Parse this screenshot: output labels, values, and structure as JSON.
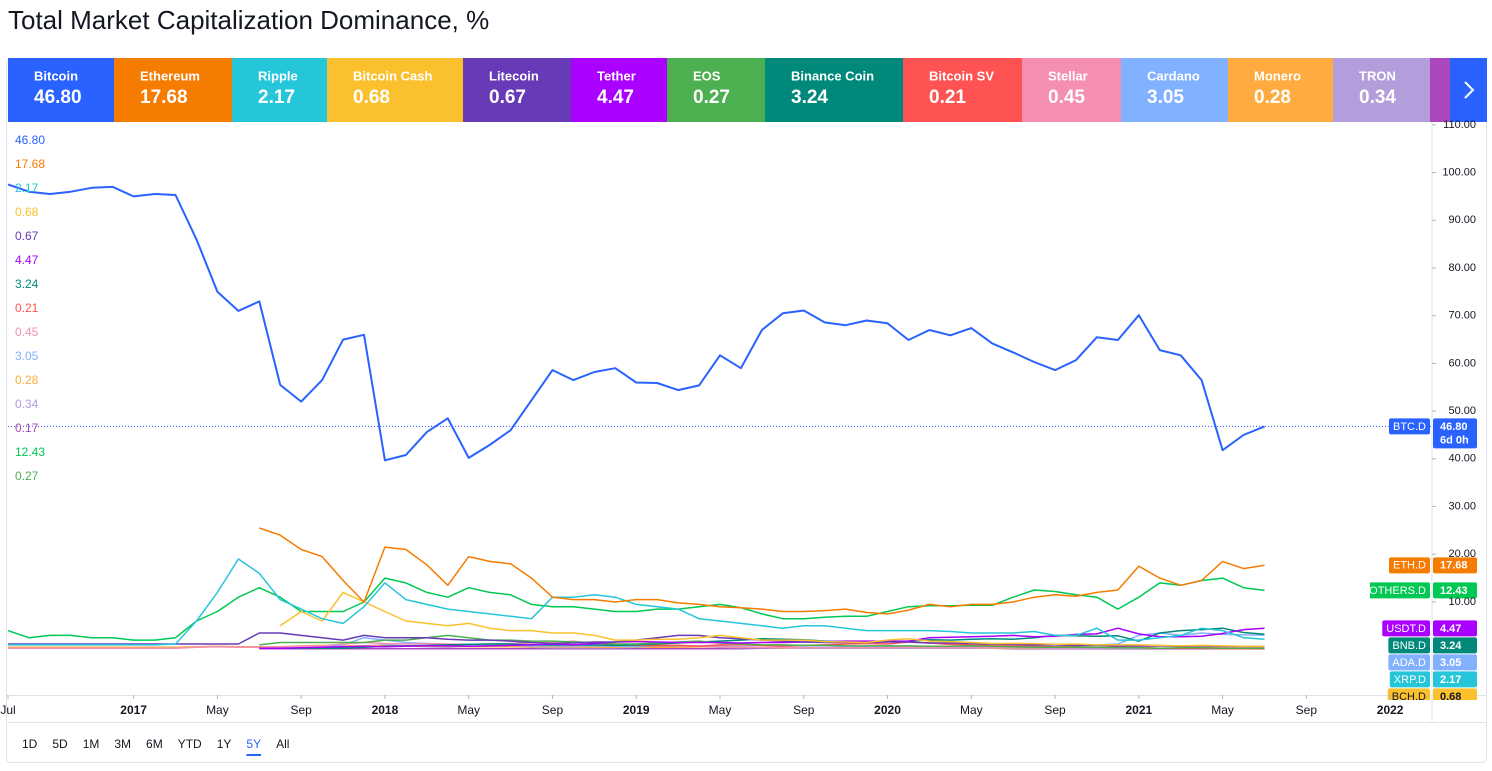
{
  "chart_data": {
    "type": "line",
    "title": "Total Market Capitalization Dominance, %",
    "x": [
      "2016-07",
      "2016-08",
      "2016-09",
      "2016-10",
      "2016-11",
      "2016-12",
      "2017-01",
      "2017-02",
      "2017-03",
      "2017-04",
      "2017-05",
      "2017-06",
      "2017-07",
      "2017-08",
      "2017-09",
      "2017-10",
      "2017-11",
      "2017-12",
      "2018-01",
      "2018-02",
      "2018-03",
      "2018-04",
      "2018-05",
      "2018-06",
      "2018-07",
      "2018-08",
      "2018-09",
      "2018-10",
      "2018-11",
      "2018-12",
      "2019-01",
      "2019-02",
      "2019-03",
      "2019-04",
      "2019-05",
      "2019-06",
      "2019-07",
      "2019-08",
      "2019-09",
      "2019-10",
      "2019-11",
      "2019-12",
      "2020-01",
      "2020-02",
      "2020-03",
      "2020-04",
      "2020-05",
      "2020-06",
      "2020-07",
      "2020-08",
      "2020-09",
      "2020-10",
      "2020-11",
      "2020-12",
      "2021-01",
      "2021-02",
      "2021-03",
      "2021-04",
      "2021-05",
      "2021-06",
      "2021-07"
    ],
    "xlim": [
      "2016-07",
      "2022-03"
    ],
    "xticks": [
      {
        "value": "2016-07",
        "label": "Jul"
      },
      {
        "value": "2017-01",
        "label": "2017"
      },
      {
        "value": "2017-05",
        "label": "May"
      },
      {
        "value": "2017-09",
        "label": "Sep"
      },
      {
        "value": "2018-01",
        "label": "2018"
      },
      {
        "value": "2018-05",
        "label": "May"
      },
      {
        "value": "2018-09",
        "label": "Sep"
      },
      {
        "value": "2019-01",
        "label": "2019"
      },
      {
        "value": "2019-05",
        "label": "May"
      },
      {
        "value": "2019-09",
        "label": "Sep"
      },
      {
        "value": "2020-01",
        "label": "2020"
      },
      {
        "value": "2020-05",
        "label": "May"
      },
      {
        "value": "2020-09",
        "label": "Sep"
      },
      {
        "value": "2021-01",
        "label": "2021"
      },
      {
        "value": "2021-05",
        "label": "May"
      },
      {
        "value": "2021-09",
        "label": "Sep"
      },
      {
        "value": "2022-01",
        "label": "2022"
      }
    ],
    "ylim": [
      -9.5,
      110.6
    ],
    "yticks": [
      {
        "value": 10,
        "label": "10.00"
      },
      {
        "value": 20,
        "label": "20.00"
      },
      {
        "value": 30,
        "label": "30.00"
      },
      {
        "value": 40,
        "label": "40.00"
      },
      {
        "value": 50,
        "label": "50.00"
      },
      {
        "value": 60,
        "label": "60.00"
      },
      {
        "value": 70,
        "label": "70.00"
      },
      {
        "value": 80,
        "label": "80.00"
      },
      {
        "value": 90,
        "label": "90.00"
      },
      {
        "value": 100,
        "label": "100.00"
      },
      {
        "value": 110,
        "label": "110.00"
      }
    ],
    "grid": false,
    "series": [
      {
        "name": "Bitcoin",
        "ticker": "BTC.D",
        "countdown": "6d 0h",
        "color": "#2962ff",
        "last_label": "46.80",
        "values": [
          97.5,
          96,
          95.5,
          96,
          96.8,
          97,
          95,
          95.5,
          95.3,
          86,
          75,
          71,
          73,
          55.5,
          52,
          56.5,
          65,
          66,
          39.7,
          40.8,
          45.6,
          48.5,
          40.2,
          42.9,
          46,
          52.3,
          58.6,
          56.5,
          58.2,
          59,
          56,
          55.9,
          54.4,
          55.4,
          61.7,
          59,
          67,
          70.5,
          71.1,
          68.6,
          68,
          69,
          68.4,
          64.9,
          67,
          65.9,
          67.4,
          64.2,
          62.3,
          60.3,
          58.6,
          60.7,
          65.5,
          64.9,
          70.1,
          62.8,
          61.7,
          56.5,
          41.8,
          45,
          46.8
        ]
      },
      {
        "name": "Ethereum",
        "ticker": "ETH.D",
        "color": "#f57c00",
        "last_label": "17.68",
        "values": [
          null,
          null,
          null,
          null,
          null,
          null,
          null,
          null,
          null,
          null,
          null,
          null,
          25.5,
          24,
          21,
          19.5,
          14.5,
          10,
          21.5,
          21,
          17.8,
          13.5,
          19.5,
          18.5,
          18,
          15,
          11,
          10.5,
          10.5,
          10,
          10.5,
          10.5,
          9.8,
          9.5,
          9,
          8.8,
          8.5,
          8,
          8,
          8.2,
          8.5,
          7.8,
          7.5,
          8.3,
          9.5,
          9,
          9.5,
          9.5,
          10,
          11,
          11.5,
          11.2,
          12,
          12.5,
          17.5,
          15,
          13.5,
          14.5,
          18.5,
          17,
          17.68
        ]
      },
      {
        "name": "Ripple",
        "ticker": "XRP.D",
        "color": "#26c6da",
        "last_label": "2.17",
        "values": [
          1,
          1,
          1,
          1,
          1,
          1,
          1,
          1,
          1.2,
          6,
          12,
          19,
          16,
          10.5,
          8.5,
          6.5,
          5.5,
          9,
          14,
          10.5,
          9.5,
          8.5,
          8,
          7.5,
          7,
          6.5,
          11,
          11,
          11.5,
          11,
          9.5,
          9,
          8.5,
          6.5,
          6,
          5.5,
          5,
          4.5,
          5,
          5,
          4.5,
          4,
          4,
          4,
          4,
          3.8,
          3.5,
          3.5,
          3.5,
          3.8,
          3,
          3,
          4.5,
          2,
          2,
          2.5,
          3,
          4.5,
          4,
          2.5,
          2.17
        ]
      },
      {
        "name": "Bitcoin Cash",
        "ticker": "BCH.D",
        "color": "#fbc02d",
        "last_label": "0.68",
        "values": [
          null,
          null,
          null,
          null,
          null,
          null,
          null,
          null,
          null,
          null,
          null,
          null,
          null,
          5,
          8,
          6,
          12,
          10,
          8,
          6,
          5.5,
          5,
          5.5,
          4.5,
          4,
          4,
          3.5,
          3.5,
          3,
          2,
          2,
          2.2,
          2.2,
          2.5,
          3,
          2.5,
          2,
          2,
          2,
          1.7,
          1.6,
          1.5,
          2,
          2.3,
          1.8,
          1.7,
          1.5,
          1.3,
          1.3,
          1.3,
          1.1,
          1.2,
          1,
          1,
          1,
          0.9,
          0.8,
          0.9,
          0.8,
          0.7,
          0.68
        ]
      },
      {
        "name": "Litecoin",
        "color": "#673ab7",
        "last_label": "0.67",
        "values": [
          1.2,
          1.2,
          1.2,
          1.2,
          1.2,
          1.2,
          1.2,
          1.2,
          1.2,
          1.2,
          1.2,
          1.2,
          3.5,
          3.5,
          3,
          2.5,
          2,
          3,
          2.5,
          2.5,
          2.5,
          2.2,
          2,
          2,
          1.8,
          1.5,
          1.3,
          1.4,
          1.6,
          1.6,
          2,
          2.5,
          3,
          3,
          2.5,
          2.3,
          2,
          1.8,
          1.6,
          1.5,
          1.5,
          1.5,
          1.6,
          1.6,
          1.4,
          1.4,
          1.3,
          1.2,
          1.1,
          1,
          1,
          0.9,
          0.9,
          0.8,
          0.8,
          0.8,
          0.7,
          0.8,
          0.7,
          0.7,
          0.67
        ]
      },
      {
        "name": "Tether",
        "ticker": "USDT.D",
        "color": "#aa00ff",
        "last_label": "4.47",
        "values": [
          null,
          null,
          null,
          null,
          null,
          null,
          null,
          null,
          null,
          null,
          null,
          null,
          0.3,
          0.3,
          0.4,
          0.5,
          0.6,
          0.7,
          0.6,
          0.7,
          0.8,
          0.8,
          0.7,
          0.8,
          0.9,
          1,
          1.2,
          1,
          1.3,
          1.6,
          1.7,
          1.6,
          1.5,
          1.5,
          1.5,
          1.4,
          1.5,
          1.5,
          1.6,
          1.7,
          1.8,
          1.8,
          1.8,
          1.8,
          2.5,
          2.6,
          2.7,
          2.8,
          3,
          2.7,
          2.8,
          3.2,
          3.3,
          4.5,
          3.3,
          2.7,
          2.7,
          2.8,
          3.4,
          4.2,
          4.47
        ]
      },
      {
        "name": "EOS",
        "color": "#4caf50",
        "last_label": "0.27",
        "values": [
          null,
          null,
          null,
          null,
          null,
          null,
          null,
          null,
          null,
          null,
          null,
          null,
          1,
          1.5,
          1.5,
          1.5,
          1.5,
          1.5,
          2,
          2,
          2.5,
          3,
          2.5,
          2,
          2,
          1.8,
          1.8,
          1.6,
          1.5,
          1.2,
          1.2,
          1.4,
          1.6,
          1.8,
          1.4,
          1.2,
          1,
          1,
          0.9,
          0.9,
          0.8,
          0.8,
          0.8,
          0.8,
          0.7,
          0.7,
          0.8,
          0.7,
          0.6,
          0.5,
          0.5,
          0.5,
          0.5,
          0.4,
          0.4,
          0.3,
          0.4,
          0.4,
          0.3,
          0.3,
          0.27
        ]
      },
      {
        "name": "Binance Coin",
        "ticker": "BNB.D",
        "color": "#00897b",
        "last_label": "3.24",
        "values": [
          null,
          null,
          null,
          null,
          null,
          null,
          null,
          null,
          null,
          null,
          null,
          null,
          0.3,
          0.3,
          0.3,
          0.3,
          0.3,
          0.5,
          0.7,
          0.8,
          0.9,
          1,
          1.1,
          1.2,
          1.2,
          1,
          1,
          1,
          1,
          0.9,
          1,
          1.2,
          1.4,
          1.6,
          1.8,
          2,
          2.3,
          2.2,
          2.1,
          1.8,
          1.7,
          1.6,
          1.7,
          1.8,
          2.1,
          2,
          2.2,
          2.3,
          2.2,
          2.5,
          3,
          2.9,
          2.8,
          2.9,
          1.8,
          3.5,
          4,
          4.2,
          4.5,
          3.6,
          3.24
        ]
      },
      {
        "name": "Bitcoin SV",
        "color": "#ff5252",
        "last_label": "0.21",
        "values": [
          null,
          null,
          null,
          null,
          null,
          null,
          null,
          null,
          null,
          null,
          null,
          null,
          null,
          null,
          null,
          null,
          null,
          null,
          null,
          null,
          null,
          null,
          null,
          null,
          null,
          null,
          null,
          null,
          1.5,
          1,
          0.9,
          0.8,
          0.9,
          0.7,
          1,
          1,
          0.9,
          0.8,
          0.9,
          1,
          1.2,
          1.3,
          1.2,
          1.6,
          1.4,
          1.1,
          1,
          0.9,
          0.8,
          0.7,
          0.6,
          0.6,
          0.5,
          0.5,
          0.4,
          0.3,
          0.3,
          0.3,
          0.2,
          0.2,
          0.21
        ]
      },
      {
        "name": "Stellar",
        "color": "#f48fb1",
        "last_label": "0.45",
        "values": [
          0.3,
          0.3,
          0.3,
          0.3,
          0.3,
          0.3,
          0.3,
          0.3,
          0.3,
          0.5,
          0.6,
          0.5,
          0.5,
          0.6,
          0.7,
          0.8,
          1.2,
          1.5,
          1.3,
          1.2,
          1.3,
          1.2,
          1.1,
          1.2,
          1.3,
          1.4,
          1.5,
          1.8,
          1.3,
          1.2,
          1.1,
          1,
          0.9,
          0.7,
          0.6,
          0.5,
          0.5,
          0.5,
          0.4,
          0.4,
          0.4,
          0.4,
          0.4,
          0.5,
          0.4,
          0.4,
          0.4,
          0.5,
          0.5,
          0.5,
          0.4,
          0.4,
          0.5,
          0.5,
          0.6,
          0.8,
          0.7,
          0.7,
          0.6,
          0.5,
          0.45
        ]
      },
      {
        "name": "Cardano",
        "ticker": "ADA.D",
        "color": "#82b1ff",
        "last_label": "3.05",
        "values": [
          null,
          null,
          null,
          null,
          null,
          null,
          null,
          null,
          null,
          null,
          null,
          null,
          null,
          null,
          null,
          0.5,
          1,
          2.5,
          2,
          1.5,
          1.3,
          1,
          1.1,
          1,
          0.9,
          0.8,
          0.8,
          0.8,
          0.8,
          0.7,
          0.6,
          0.8,
          0.8,
          0.8,
          0.7,
          0.6,
          0.5,
          0.5,
          0.5,
          0.5,
          0.5,
          0.5,
          0.5,
          0.6,
          0.5,
          0.5,
          0.6,
          0.7,
          0.8,
          1,
          1,
          0.9,
          1,
          1.2,
          3,
          3.5,
          3,
          3.5,
          3.2,
          3.1,
          3.05
        ]
      },
      {
        "name": "Monero",
        "color": "#ffab40",
        "last_label": "0.28",
        "values": [
          0.5,
          0.5,
          0.5,
          0.5,
          0.5,
          0.5,
          0.5,
          0.5,
          0.5,
          0.6,
          0.7,
          0.6,
          0.6,
          0.6,
          0.8,
          0.9,
          0.8,
          0.8,
          0.8,
          0.7,
          0.7,
          0.7,
          0.6,
          0.6,
          0.6,
          0.6,
          0.6,
          0.6,
          0.5,
          0.5,
          0.5,
          0.5,
          0.5,
          0.6,
          0.6,
          0.5,
          0.5,
          0.4,
          0.4,
          0.5,
          0.5,
          0.5,
          0.5,
          0.5,
          0.4,
          0.4,
          0.4,
          0.4,
          0.4,
          0.4,
          0.4,
          0.5,
          0.5,
          0.4,
          0.4,
          0.3,
          0.3,
          0.3,
          0.4,
          0.3,
          0.28
        ]
      },
      {
        "name": "TRON",
        "color": "#b39ddb",
        "last_label": "0.34",
        "values": [
          null,
          null,
          null,
          null,
          null,
          null,
          null,
          null,
          null,
          null,
          null,
          null,
          null,
          null,
          null,
          null,
          null,
          0.8,
          1,
          0.8,
          0.6,
          0.5,
          0.7,
          0.6,
          0.6,
          0.5,
          0.4,
          0.4,
          0.4,
          0.4,
          0.5,
          0.5,
          0.5,
          0.6,
          0.5,
          0.4,
          0.4,
          0.3,
          0.3,
          0.3,
          0.3,
          0.3,
          0.3,
          0.3,
          0.3,
          0.3,
          0.3,
          0.3,
          0.3,
          0.3,
          0.3,
          0.3,
          0.3,
          0.3,
          0.3,
          0.3,
          0.3,
          0.4,
          0.4,
          0.35,
          0.34
        ]
      },
      {
        "color": "#ab47bc",
        "last_label": "0.17",
        "values": [
          null,
          null,
          null,
          null,
          null,
          null,
          null,
          null,
          null,
          null,
          null,
          null,
          0.2,
          0.2,
          0.2,
          0.2,
          0.2,
          0.2,
          0.2,
          0.2,
          0.2,
          0.2,
          0.2,
          0.2,
          0.2,
          0.2,
          0.2,
          0.2,
          0.2,
          0.2,
          0.2,
          0.2,
          0.2,
          0.2,
          0.2,
          0.2,
          0.3,
          0.3,
          0.3,
          0.3,
          0.3,
          0.3,
          0.3,
          0.3,
          0.3,
          0.3,
          0.3,
          0.3,
          0.2,
          0.2,
          0.2,
          0.2,
          0.2,
          0.2,
          0.2,
          0.2,
          0.2,
          0.2,
          0.2,
          0.2,
          0.17
        ]
      },
      {
        "ticker": "OTHERS.D",
        "color": "#00c853",
        "last_label": "12.43",
        "values": [
          4,
          2.5,
          3,
          3,
          2.5,
          2.5,
          2,
          2,
          2.5,
          6,
          8,
          11,
          13,
          11,
          8,
          8,
          8,
          10,
          15,
          14,
          12,
          11,
          13,
          12,
          11.5,
          9.5,
          9,
          9,
          8.5,
          8,
          8,
          8.5,
          8.5,
          9,
          9.5,
          8.8,
          7.5,
          6.5,
          6.5,
          6.8,
          7,
          7,
          8,
          9,
          9.2,
          9.2,
          9.3,
          9.3,
          11,
          12.5,
          12.2,
          11.5,
          11,
          8.5,
          11,
          14,
          13.5,
          14.5,
          15,
          13,
          12.43
        ]
      }
    ]
  },
  "toolbar": {
    "ranges": [
      "1D",
      "5D",
      "1M",
      "3M",
      "6M",
      "YTD",
      "1Y",
      "5Y",
      "All"
    ],
    "selected": "5Y"
  }
}
